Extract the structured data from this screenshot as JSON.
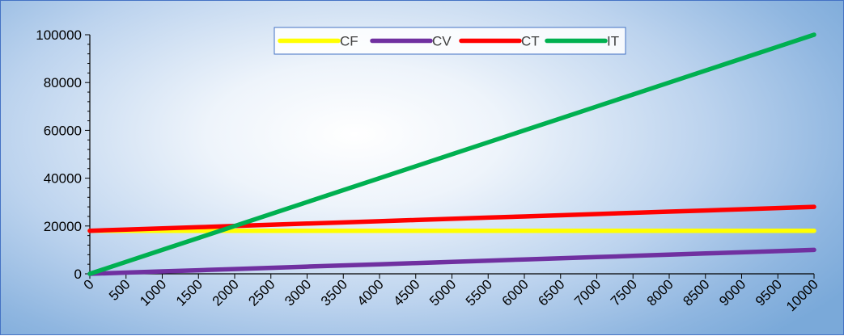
{
  "chart_data": {
    "type": "line",
    "title": "",
    "xlabel": "",
    "ylabel": "",
    "x": [
      0,
      500,
      1000,
      1500,
      2000,
      2500,
      3000,
      3500,
      4000,
      4500,
      5000,
      5500,
      6000,
      6500,
      7000,
      7500,
      8000,
      8500,
      9000,
      9500,
      10000
    ],
    "x_tick_labels": [
      "0",
      "500",
      "1000",
      "1500",
      "2000",
      "2500",
      "3000",
      "3500",
      "4000",
      "4500",
      "5000",
      "5500",
      "6000",
      "6500",
      "7000",
      "7500",
      "8000",
      "8500",
      "9000",
      "9500",
      "10000"
    ],
    "y_tick_labels": [
      "0",
      "20000",
      "40000",
      "60000",
      "80000",
      "100000"
    ],
    "ylim": [
      0,
      100000
    ],
    "xlim": [
      0,
      10000
    ],
    "grid": false,
    "legend_position": "top-center",
    "series": [
      {
        "name": "CF",
        "color": "#ffff00",
        "values": [
          18000,
          18000,
          18000,
          18000,
          18000,
          18000,
          18000,
          18000,
          18000,
          18000,
          18000,
          18000,
          18000,
          18000,
          18000,
          18000,
          18000,
          18000,
          18000,
          18000,
          18000
        ]
      },
      {
        "name": "CV",
        "color": "#7030a0",
        "values": [
          0,
          500,
          1000,
          1500,
          2000,
          2500,
          3000,
          3500,
          4000,
          4500,
          5000,
          5500,
          6000,
          6500,
          7000,
          7500,
          8000,
          8500,
          9000,
          9500,
          10000
        ]
      },
      {
        "name": "CT",
        "color": "#ff0000",
        "values": [
          18000,
          18500,
          19000,
          19500,
          20000,
          20500,
          21000,
          21500,
          22000,
          22500,
          23000,
          23500,
          24000,
          24500,
          25000,
          25500,
          26000,
          26500,
          27000,
          27500,
          28000
        ]
      },
      {
        "name": "IT",
        "color": "#00b050",
        "values": [
          0,
          5000,
          10000,
          15000,
          20000,
          25000,
          30000,
          35000,
          40000,
          45000,
          50000,
          55000,
          60000,
          65000,
          70000,
          75000,
          80000,
          85000,
          90000,
          95000,
          100000
        ]
      }
    ]
  }
}
